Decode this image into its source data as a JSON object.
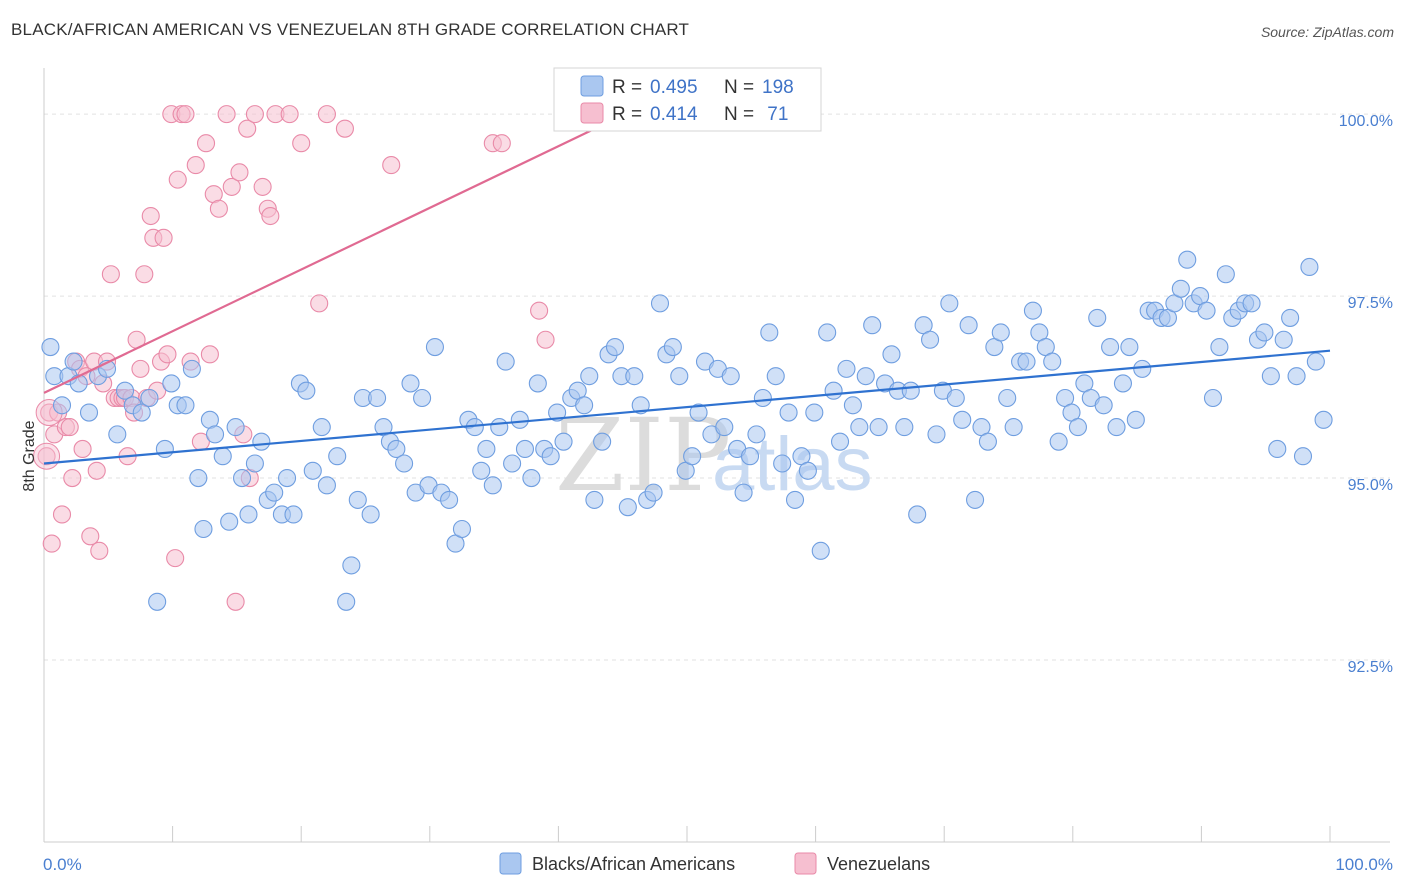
{
  "title": "BLACK/AFRICAN AMERICAN VS VENEZUELAN 8TH GRADE CORRELATION CHART",
  "source": "Source: ZipAtlas.com",
  "watermark": {
    "zip": "ZIP",
    "atlas": "atlas"
  },
  "colors": {
    "blue_fill": "#aac7f0",
    "blue_stroke": "#6f9ee0",
    "blue_line": "#2f72d0",
    "pink_fill": "#f6bfd0",
    "pink_stroke": "#e98aa8",
    "pink_line": "#e06a92",
    "axis_text": "#4a7fd0"
  },
  "chart_data": {
    "type": "scatter",
    "title": "BLACK/AFRICAN AMERICAN VS VENEZUELAN 8TH GRADE CORRELATION CHART",
    "xlabel": "",
    "ylabel": "8th Grade",
    "xlim": [
      0,
      100
    ],
    "ylim": [
      90.0,
      100.4
    ],
    "x_tick_labels": [
      "0.0%",
      "100.0%"
    ],
    "y_ticks": [
      {
        "value": 100.0,
        "label": "100.0%"
      },
      {
        "value": 97.5,
        "label": "97.5%"
      },
      {
        "value": 95.0,
        "label": "95.0%"
      },
      {
        "value": 92.5,
        "label": "92.5%"
      }
    ],
    "grid": true,
    "legend": [
      {
        "series": "Blacks/African Americans",
        "r_label": "R = ",
        "r": "0.495",
        "n_label": "N = ",
        "n": "198"
      },
      {
        "series": "Venezuelans",
        "r_label": "R = ",
        "r": "0.414",
        "n_label": "N = ",
        "n": " 71"
      }
    ],
    "series": [
      {
        "name": "Blacks/African Americans",
        "color": "#aac7f0",
        "trend": {
          "x0": 0,
          "y0": 95.2,
          "x1": 100,
          "y1": 96.75
        },
        "points": [
          [
            0.5,
            96.8
          ],
          [
            0.8,
            96.4
          ],
          [
            1.4,
            96.0
          ],
          [
            1.9,
            96.4
          ],
          [
            2.3,
            96.6
          ],
          [
            2.7,
            96.3
          ],
          [
            3.5,
            95.9
          ],
          [
            4.2,
            96.4
          ],
          [
            4.9,
            96.5
          ],
          [
            5.7,
            95.6
          ],
          [
            6.3,
            96.2
          ],
          [
            6.9,
            96.0
          ],
          [
            7.6,
            95.9
          ],
          [
            8.2,
            96.1
          ],
          [
            8.8,
            93.3
          ],
          [
            9.4,
            95.4
          ],
          [
            9.9,
            96.3
          ],
          [
            10.4,
            96.0
          ],
          [
            11.0,
            96.0
          ],
          [
            11.5,
            96.5
          ],
          [
            12.0,
            95.0
          ],
          [
            12.4,
            94.3
          ],
          [
            12.9,
            95.8
          ],
          [
            13.3,
            95.6
          ],
          [
            13.9,
            95.3
          ],
          [
            14.4,
            94.4
          ],
          [
            14.9,
            95.7
          ],
          [
            15.4,
            95.0
          ],
          [
            15.9,
            94.5
          ],
          [
            16.4,
            95.2
          ],
          [
            16.9,
            95.5
          ],
          [
            17.4,
            94.7
          ],
          [
            17.9,
            94.8
          ],
          [
            18.5,
            94.5
          ],
          [
            18.9,
            95.0
          ],
          [
            19.4,
            94.5
          ],
          [
            19.9,
            96.3
          ],
          [
            20.4,
            96.2
          ],
          [
            20.9,
            95.1
          ],
          [
            21.6,
            95.7
          ],
          [
            22.0,
            94.9
          ],
          [
            22.8,
            95.3
          ],
          [
            23.5,
            93.3
          ],
          [
            23.9,
            93.8
          ],
          [
            24.4,
            94.7
          ],
          [
            24.8,
            96.1
          ],
          [
            25.4,
            94.5
          ],
          [
            25.9,
            96.1
          ],
          [
            26.4,
            95.7
          ],
          [
            26.9,
            95.5
          ],
          [
            27.4,
            95.4
          ],
          [
            28.0,
            95.2
          ],
          [
            28.5,
            96.3
          ],
          [
            28.9,
            94.8
          ],
          [
            29.4,
            96.1
          ],
          [
            29.9,
            94.9
          ],
          [
            30.4,
            96.8
          ],
          [
            30.9,
            94.8
          ],
          [
            31.5,
            94.7
          ],
          [
            32.0,
            94.1
          ],
          [
            32.5,
            94.3
          ],
          [
            33.0,
            95.8
          ],
          [
            33.5,
            95.7
          ],
          [
            34.0,
            95.1
          ],
          [
            34.4,
            95.4
          ],
          [
            34.9,
            94.9
          ],
          [
            35.4,
            95.7
          ],
          [
            35.9,
            96.6
          ],
          [
            36.4,
            95.2
          ],
          [
            37.0,
            95.8
          ],
          [
            37.4,
            95.4
          ],
          [
            37.9,
            95.0
          ],
          [
            38.4,
            96.3
          ],
          [
            38.9,
            95.4
          ],
          [
            39.4,
            95.3
          ],
          [
            39.9,
            95.9
          ],
          [
            40.4,
            95.5
          ],
          [
            41.0,
            96.1
          ],
          [
            41.5,
            96.2
          ],
          [
            42.0,
            96.0
          ],
          [
            42.4,
            96.4
          ],
          [
            42.8,
            94.7
          ],
          [
            43.4,
            95.5
          ],
          [
            43.9,
            96.7
          ],
          [
            44.4,
            96.8
          ],
          [
            44.9,
            96.4
          ],
          [
            45.4,
            94.6
          ],
          [
            45.9,
            96.4
          ],
          [
            46.4,
            96.0
          ],
          [
            46.9,
            94.7
          ],
          [
            47.4,
            94.8
          ],
          [
            47.9,
            97.4
          ],
          [
            48.4,
            96.7
          ],
          [
            48.9,
            96.8
          ],
          [
            49.4,
            96.4
          ],
          [
            49.9,
            95.1
          ],
          [
            50.4,
            95.3
          ],
          [
            50.9,
            95.9
          ],
          [
            51.4,
            96.6
          ],
          [
            51.9,
            95.6
          ],
          [
            52.4,
            96.5
          ],
          [
            52.9,
            95.7
          ],
          [
            53.4,
            96.4
          ],
          [
            53.9,
            95.4
          ],
          [
            54.4,
            94.8
          ],
          [
            54.9,
            95.3
          ],
          [
            55.4,
            95.6
          ],
          [
            55.9,
            96.1
          ],
          [
            56.4,
            97.0
          ],
          [
            56.9,
            96.4
          ],
          [
            57.4,
            95.2
          ],
          [
            57.9,
            95.9
          ],
          [
            58.4,
            94.7
          ],
          [
            58.9,
            95.3
          ],
          [
            59.4,
            95.1
          ],
          [
            59.9,
            95.9
          ],
          [
            60.4,
            94.0
          ],
          [
            60.9,
            97.0
          ],
          [
            61.4,
            96.2
          ],
          [
            61.9,
            95.5
          ],
          [
            62.4,
            96.5
          ],
          [
            62.9,
            96.0
          ],
          [
            63.4,
            95.7
          ],
          [
            63.9,
            96.4
          ],
          [
            64.4,
            97.1
          ],
          [
            64.9,
            95.7
          ],
          [
            65.4,
            96.3
          ],
          [
            65.9,
            96.7
          ],
          [
            66.4,
            96.2
          ],
          [
            66.9,
            95.7
          ],
          [
            67.4,
            96.2
          ],
          [
            67.9,
            94.5
          ],
          [
            68.4,
            97.1
          ],
          [
            68.9,
            96.9
          ],
          [
            69.4,
            95.6
          ],
          [
            69.9,
            96.2
          ],
          [
            70.4,
            97.4
          ],
          [
            70.9,
            96.1
          ],
          [
            71.4,
            95.8
          ],
          [
            71.9,
            97.1
          ],
          [
            72.4,
            94.7
          ],
          [
            72.9,
            95.7
          ],
          [
            73.4,
            95.5
          ],
          [
            73.9,
            96.8
          ],
          [
            74.4,
            97.0
          ],
          [
            74.9,
            96.1
          ],
          [
            75.4,
            95.7
          ],
          [
            75.9,
            96.6
          ],
          [
            76.4,
            96.6
          ],
          [
            76.9,
            97.3
          ],
          [
            77.4,
            97.0
          ],
          [
            77.9,
            96.8
          ],
          [
            78.4,
            96.6
          ],
          [
            78.9,
            95.5
          ],
          [
            79.4,
            96.1
          ],
          [
            79.9,
            95.9
          ],
          [
            80.4,
            95.7
          ],
          [
            80.9,
            96.3
          ],
          [
            81.4,
            96.1
          ],
          [
            81.9,
            97.2
          ],
          [
            82.4,
            96.0
          ],
          [
            82.9,
            96.8
          ],
          [
            83.4,
            95.7
          ],
          [
            83.9,
            96.3
          ],
          [
            84.4,
            96.8
          ],
          [
            84.9,
            95.8
          ],
          [
            85.4,
            96.5
          ],
          [
            85.9,
            97.3
          ],
          [
            86.4,
            97.3
          ],
          [
            86.9,
            97.2
          ],
          [
            87.4,
            97.2
          ],
          [
            87.9,
            97.4
          ],
          [
            88.4,
            97.6
          ],
          [
            88.9,
            98.0
          ],
          [
            89.4,
            97.4
          ],
          [
            89.9,
            97.5
          ],
          [
            90.4,
            97.3
          ],
          [
            90.9,
            96.1
          ],
          [
            91.4,
            96.8
          ],
          [
            91.9,
            97.8
          ],
          [
            92.4,
            97.2
          ],
          [
            92.9,
            97.3
          ],
          [
            93.4,
            97.4
          ],
          [
            93.9,
            97.4
          ],
          [
            94.4,
            96.9
          ],
          [
            94.9,
            97.0
          ],
          [
            95.4,
            96.4
          ],
          [
            95.9,
            95.4
          ],
          [
            96.4,
            96.9
          ],
          [
            96.9,
            97.2
          ],
          [
            97.4,
            96.4
          ],
          [
            97.9,
            95.3
          ],
          [
            98.4,
            97.9
          ],
          [
            98.9,
            96.6
          ],
          [
            99.5,
            95.8
          ]
        ]
      },
      {
        "name": "Venezuelans",
        "color": "#f6bfd0",
        "trend": {
          "x0": 0,
          "y0": 96.17,
          "x1": 45.2,
          "y1": 100.0
        },
        "points": [
          [
            0.2,
            95.3
          ],
          [
            0.4,
            95.9
          ],
          [
            0.6,
            94.1
          ],
          [
            0.8,
            95.6
          ],
          [
            1.1,
            95.9
          ],
          [
            1.4,
            94.5
          ],
          [
            1.7,
            95.7
          ],
          [
            2.0,
            95.7
          ],
          [
            2.2,
            95.0
          ],
          [
            2.5,
            96.6
          ],
          [
            2.8,
            96.5
          ],
          [
            3.0,
            95.4
          ],
          [
            3.3,
            96.4
          ],
          [
            3.6,
            94.2
          ],
          [
            3.9,
            96.6
          ],
          [
            4.1,
            95.1
          ],
          [
            4.3,
            94.0
          ],
          [
            4.6,
            96.3
          ],
          [
            4.9,
            96.6
          ],
          [
            5.2,
            97.8
          ],
          [
            5.5,
            96.1
          ],
          [
            5.8,
            96.1
          ],
          [
            6.1,
            96.1
          ],
          [
            6.3,
            96.1
          ],
          [
            6.5,
            95.3
          ],
          [
            6.8,
            96.1
          ],
          [
            7.0,
            95.9
          ],
          [
            7.2,
            96.9
          ],
          [
            7.5,
            96.5
          ],
          [
            7.8,
            97.8
          ],
          [
            8.0,
            96.1
          ],
          [
            8.3,
            98.6
          ],
          [
            8.5,
            98.3
          ],
          [
            8.8,
            96.2
          ],
          [
            9.1,
            96.6
          ],
          [
            9.3,
            98.3
          ],
          [
            9.6,
            96.7
          ],
          [
            9.9,
            100.0
          ],
          [
            10.2,
            93.9
          ],
          [
            10.4,
            99.1
          ],
          [
            10.7,
            100.0
          ],
          [
            11.0,
            100.0
          ],
          [
            11.4,
            96.6
          ],
          [
            11.8,
            99.3
          ],
          [
            12.2,
            95.5
          ],
          [
            12.6,
            99.6
          ],
          [
            12.9,
            96.7
          ],
          [
            13.2,
            98.9
          ],
          [
            13.6,
            98.7
          ],
          [
            14.2,
            100.0
          ],
          [
            14.6,
            99.0
          ],
          [
            14.9,
            93.3
          ],
          [
            15.2,
            99.2
          ],
          [
            15.5,
            95.6
          ],
          [
            15.8,
            99.8
          ],
          [
            16.0,
            95.0
          ],
          [
            16.4,
            100.0
          ],
          [
            17.0,
            99.0
          ],
          [
            17.4,
            98.7
          ],
          [
            17.6,
            98.6
          ],
          [
            18.0,
            100.0
          ],
          [
            19.1,
            100.0
          ],
          [
            20.0,
            99.6
          ],
          [
            21.4,
            97.4
          ],
          [
            22.0,
            100.0
          ],
          [
            23.4,
            99.8
          ],
          [
            27.0,
            99.3
          ],
          [
            34.9,
            99.6
          ],
          [
            35.6,
            99.6
          ],
          [
            38.5,
            97.3
          ],
          [
            39.0,
            96.9
          ]
        ]
      }
    ]
  },
  "bottom_legend": [
    {
      "label": "Blacks/African Americans",
      "color": "#aac7f0"
    },
    {
      "label": "Venezuelans",
      "color": "#f6bfd0"
    }
  ]
}
